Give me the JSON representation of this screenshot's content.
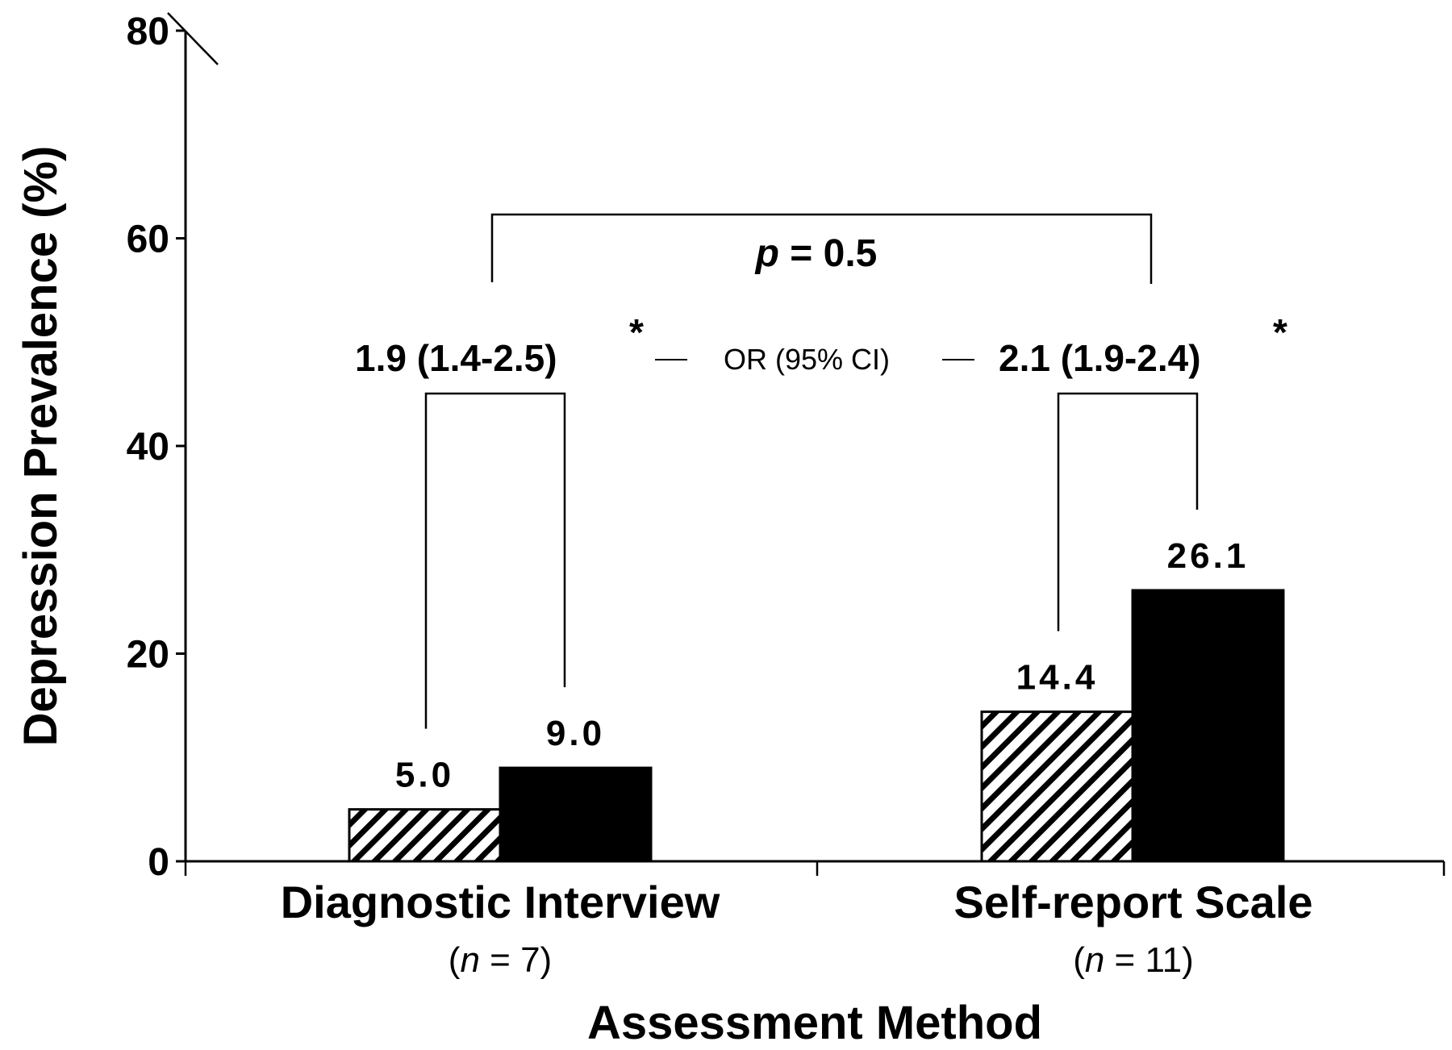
{
  "chart_data": {
    "type": "bar",
    "title": "",
    "xlabel": "Assessment Method",
    "ylabel": "Depression Prevalence (%)",
    "ylim": [
      0,
      80
    ],
    "yticks": [
      "0",
      "20",
      "40",
      "60",
      "80"
    ],
    "grid": false,
    "legend": "none",
    "categories": [
      {
        "label": "Diagnostic Interview",
        "n_label": "(n = 7)",
        "n_parts": [
          "(",
          "n",
          " = 7)"
        ]
      },
      {
        "label": "Self-report Scale",
        "n_label": "(n = 11)",
        "n_parts": [
          "(",
          "n",
          " = 11)"
        ]
      }
    ],
    "series": [
      {
        "pattern": "hatched",
        "color": "#000000",
        "values": [
          5.0,
          14.4
        ],
        "labels": [
          "5.0",
          "14.4"
        ]
      },
      {
        "pattern": "solid",
        "color": "#000000",
        "values": [
          9.0,
          26.1
        ],
        "labels": [
          "9.0",
          "26.1"
        ]
      }
    ],
    "annotations": {
      "odds_ratios": [
        "1.9 (1.4-2.5)",
        "2.1 (1.9-2.4)"
      ],
      "odds_ratio_marker": "*",
      "odds_ratio_middle": "OR (95% CI)",
      "p_value_parts": [
        "p",
        " = 0.5"
      ],
      "p_value": "p = 0.5"
    }
  }
}
